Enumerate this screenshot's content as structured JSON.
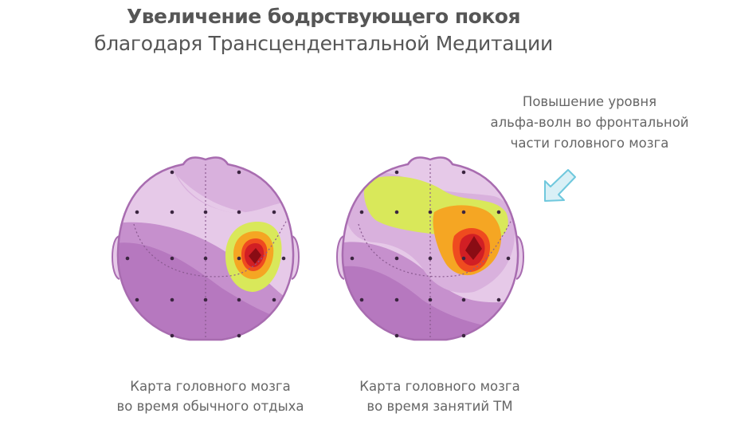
{
  "title": {
    "main": "Увеличение бодрствующего покоя",
    "sub": "благодаря Трансцендентальной Медитации"
  },
  "annotation": {
    "lines": [
      "Повышение уровня",
      "альфа-волн во фронтальной",
      "части головного мозга"
    ]
  },
  "captions": {
    "left": [
      "Карта головного мозга",
      "во время обычного отдыха"
    ],
    "right": [
      "Карта головного мозга",
      "во время занятий ТМ"
    ]
  },
  "colors": {
    "purple_dark": "#b678bf",
    "purple_mid": "#c690cd",
    "purple_light": "#d9b1dd",
    "purple_pale": "#e6c9e8",
    "yellow_green": "#d9e85a",
    "orange": "#f5a623",
    "red_orange": "#ef4b1f",
    "red": "#d11f24",
    "dark_red": "#8a0c14",
    "arrow_blue": "#6fc8dd",
    "arrow_fill": "#d9f0f6"
  }
}
